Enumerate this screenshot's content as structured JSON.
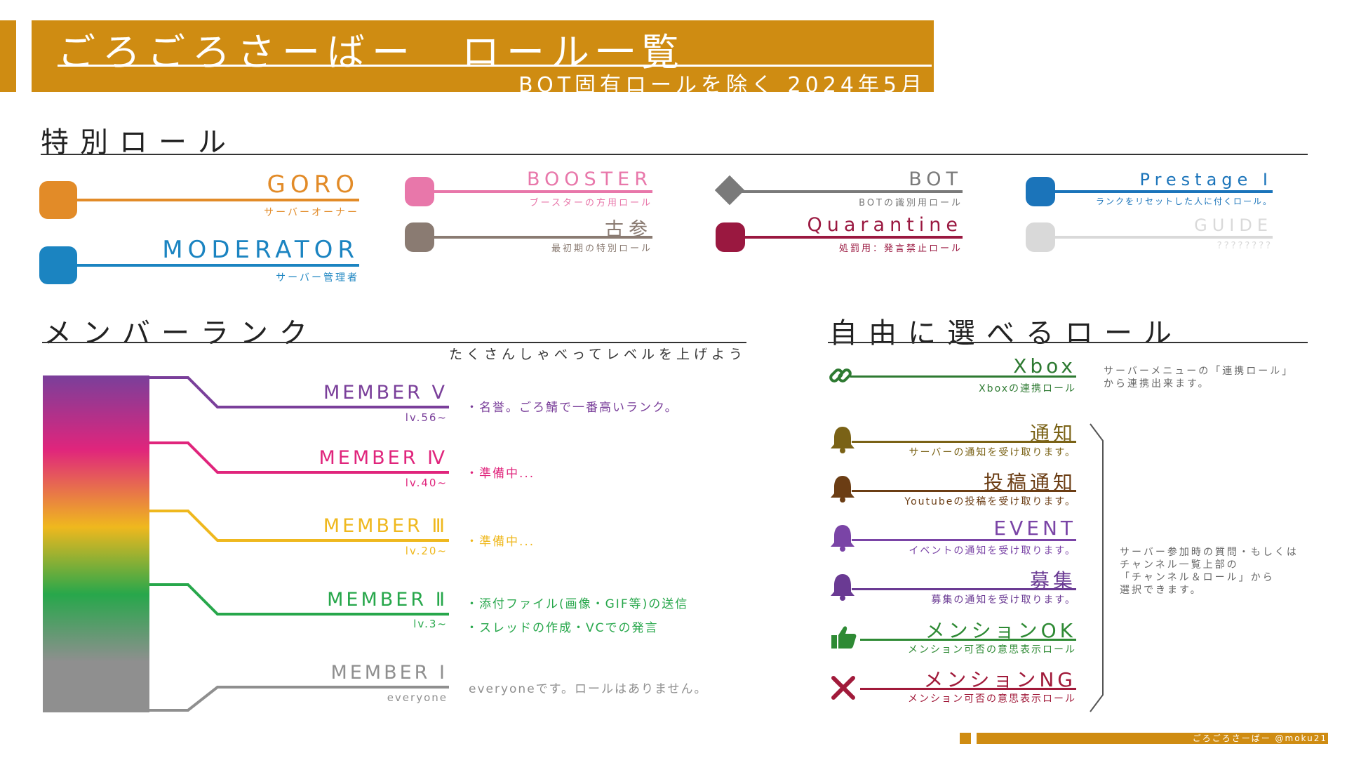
{
  "header": {
    "title": "ごろごろさーばー　ロール一覧",
    "subtitle": "BOT固有ロールを除く 2024年5月"
  },
  "special": {
    "heading": "特別ロール",
    "roles": [
      {
        "name": "GORO",
        "desc": "サーバーオーナー",
        "color": "#e28b28"
      },
      {
        "name": "MODERATOR",
        "desc": "サーバー管理者",
        "color": "#1b84c1"
      },
      {
        "name": "BOOSTER",
        "desc": "ブースターの方用ロール",
        "color": "#e877aa"
      },
      {
        "name": "古参",
        "desc": "最初期の特別ロール",
        "color": "#8a7b72"
      },
      {
        "name": "BOT",
        "desc": "BOTの識別用ロール",
        "color": "#7a7a7a"
      },
      {
        "name": "Quarantine",
        "desc": "処罰用：発言禁止ロール",
        "color": "#9a1840"
      },
      {
        "name": "Prestage Ⅰ",
        "desc": "ランクをリセットした人に付くロール。",
        "color": "#1b74ba"
      },
      {
        "name": "GUIDE",
        "desc": "????????",
        "color": "#d9d9d9"
      }
    ]
  },
  "ranks": {
    "heading": "メンバーランク",
    "caption": "たくさんしゃべってレベルを上げよう",
    "items": [
      {
        "name": "MEMBER Ⅴ",
        "level": "lv.56~",
        "color": "#7a3f9a",
        "notes": [
          "・名誉。ごろ鯖で一番高いランク。"
        ]
      },
      {
        "name": "MEMBER Ⅳ",
        "level": "lv.40~",
        "color": "#e0257c",
        "notes": [
          "・準備中..."
        ]
      },
      {
        "name": "MEMBER Ⅲ",
        "level": "lv.20~",
        "color": "#efb81e",
        "notes": [
          "・準備中..."
        ]
      },
      {
        "name": "MEMBER Ⅱ",
        "level": "lv.3~",
        "color": "#27a74b",
        "notes": [
          "・添付ファイル(画像・GIF等)の送信",
          "・スレッドの作成・VCでの発言"
        ]
      },
      {
        "name": "MEMBER Ⅰ",
        "level": "everyone",
        "color": "#8f8f8f",
        "notes": [
          "everyoneです。ロールはありません。"
        ]
      }
    ]
  },
  "free": {
    "heading": "自由に選べるロール",
    "xbox": {
      "name": "Xbox",
      "desc": "Xboxの連携ロール",
      "color": "#2e7a32",
      "icon": "link-icon",
      "note": [
        "サーバーメニューの「連携ロール」",
        "から連携出来ます。"
      ]
    },
    "roles": [
      {
        "name": "通知",
        "desc": "サーバーの通知を受け取ります。",
        "color": "#7a6216",
        "icon": "bell-icon"
      },
      {
        "name": "投稿通知",
        "desc": "Youtubeの投稿を受け取ります。",
        "color": "#6b3d14",
        "icon": "bell-icon"
      },
      {
        "name": "EVENT",
        "desc": "イベントの通知を受け取ります。",
        "color": "#7a44a6",
        "icon": "bell-icon"
      },
      {
        "name": "募集",
        "desc": "募集の通知を受け取ります。",
        "color": "#6a3a93",
        "icon": "bell-icon"
      },
      {
        "name": "メンションOK",
        "desc": "メンション可否の意思表示ロール",
        "color": "#2e8a34",
        "icon": "thumbs-up-icon"
      },
      {
        "name": "メンションNG",
        "desc": "メンション可否の意思表示ロール",
        "color": "#a11a3a",
        "icon": "cross-icon"
      }
    ],
    "note": [
      "サーバー参加時の質問・もしくは",
      "チャンネル一覧上部の",
      "「チャンネル＆ロール」から",
      "選択できます。"
    ]
  },
  "footer": {
    "credit": "ごろごろさーばー @moku21",
    "color": "#cf8c12"
  }
}
